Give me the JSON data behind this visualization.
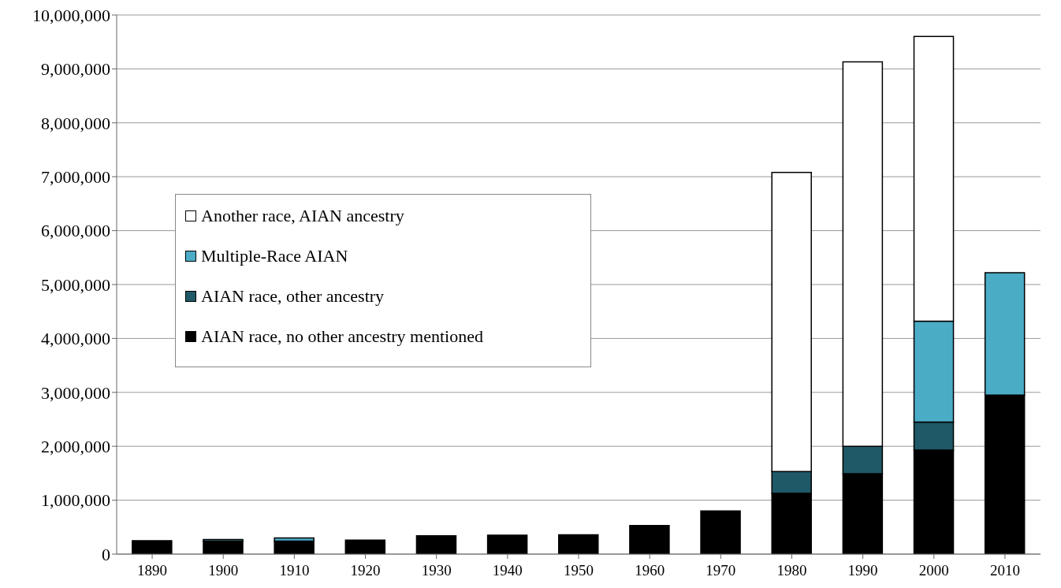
{
  "chart_data": {
    "type": "bar",
    "stacked": true,
    "categories": [
      "1890",
      "1900",
      "1910",
      "1920",
      "1930",
      "1940",
      "1950",
      "1960",
      "1970",
      "1980",
      "1990",
      "2000",
      "2010"
    ],
    "series": [
      {
        "name": "AIAN race, no other ancestry mentioned",
        "color": "#000000",
        "values": [
          250000,
          240000,
          240000,
          260000,
          340000,
          350000,
          360000,
          530000,
          800000,
          1130000,
          1490000,
          1930000,
          2950000
        ]
      },
      {
        "name": "AIAN race, other ancestry",
        "color": "#1f5866",
        "values": [
          null,
          null,
          null,
          null,
          null,
          null,
          null,
          null,
          null,
          400000,
          510000,
          520000,
          null
        ]
      },
      {
        "name": "Multiple-Race AIAN",
        "color": "#4bacc6",
        "values": [
          null,
          30000,
          60000,
          null,
          null,
          null,
          null,
          null,
          null,
          null,
          null,
          1870000,
          2270000
        ]
      },
      {
        "name": "Another race, AIAN ancestry",
        "color": "#ffffff",
        "values": [
          null,
          null,
          null,
          null,
          null,
          null,
          null,
          null,
          null,
          5550000,
          7130000,
          5280000,
          null
        ]
      }
    ],
    "ylim": [
      0,
      10000000
    ],
    "yticks": [
      0,
      {
        "value": 1000000,
        "label": "1,000,000"
      },
      {
        "value": 2000000,
        "label": "2,000,000"
      },
      {
        "value": 3000000,
        "label": "3,000,000"
      },
      {
        "value": 4000000,
        "label": "4,000,000"
      },
      {
        "value": 5000000,
        "label": "5,000,000"
      },
      {
        "value": 6000000,
        "label": "6,000,000"
      },
      {
        "value": 7000000,
        "label": "7,000,000"
      },
      {
        "value": 8000000,
        "label": "8,000,000"
      },
      {
        "value": 9000000,
        "label": "9,000,000"
      },
      {
        "value": 10000000,
        "label": "10,000,000"
      }
    ],
    "grid": "y",
    "legend": "left"
  }
}
